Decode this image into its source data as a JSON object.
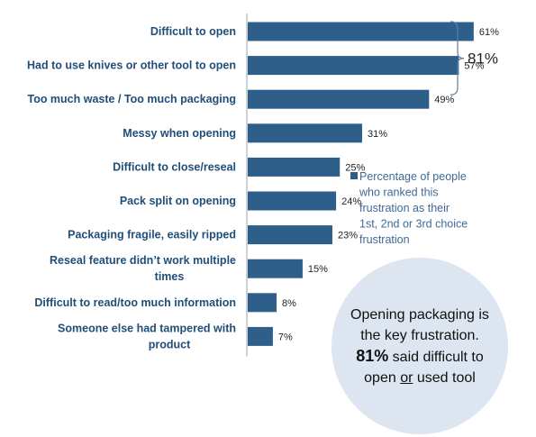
{
  "chart_data": {
    "type": "bar",
    "orientation": "horizontal",
    "categories": [
      [
        "Difficult to open"
      ],
      [
        "Had to use knives or other tool to open"
      ],
      [
        "Too much waste / Too much packaging"
      ],
      [
        "Messy when opening"
      ],
      [
        "Difficult to close/reseal"
      ],
      [
        "Pack split on opening"
      ],
      [
        "Packaging fragile, easily ripped"
      ],
      [
        "Reseal feature didn’t work multiple",
        "times"
      ],
      [
        "Difficult to read/too much information"
      ],
      [
        "Someone else had tampered with",
        "product"
      ]
    ],
    "values": [
      61,
      57,
      49,
      31,
      25,
      24,
      23,
      15,
      8,
      7
    ],
    "value_labels": [
      "61%",
      "57%",
      "49%",
      "31%",
      "25%",
      "24%",
      "23%",
      "15%",
      "8%",
      "7%"
    ],
    "xlim": [
      0,
      70
    ],
    "grid": false,
    "legend": {
      "placement": "center-right",
      "text": [
        "Percentage of people",
        "who ranked this",
        "frustration as their",
        "1st, 2nd or 3rd choice",
        "frustration"
      ]
    },
    "annotations": [
      {
        "type": "brace",
        "covers": [
          "Difficult to open",
          "Had to use knives or other tool to open"
        ],
        "label": "81%"
      }
    ]
  },
  "callout": {
    "line1": "Opening packaging is",
    "line2": "the key frustration.",
    "line3_bold": "81%",
    "line3_rest": " said difficult to",
    "line4_a": "open ",
    "line4_underline": "or",
    "line4_b": " used tool"
  },
  "colors": {
    "bar": "#2e5f8a",
    "label_text": "#1f4e79",
    "legend_text": "#3e6a95",
    "callout_bg": "#dce5f0"
  }
}
